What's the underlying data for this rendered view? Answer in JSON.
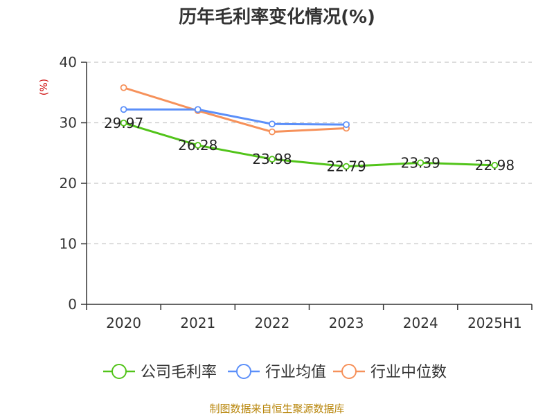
{
  "chart_data": {
    "type": "line",
    "title": "历年毛利率变化情况(%)",
    "ylabel": "(%)",
    "xlabel": "",
    "categories": [
      "2020",
      "2021",
      "2022",
      "2023",
      "2024",
      "2025H1"
    ],
    "ylim": [
      0,
      40
    ],
    "yticks": [
      0,
      10,
      20,
      30,
      40
    ],
    "grid": true,
    "legend_position": "bottom",
    "series": [
      {
        "name": "公司毛利率",
        "color": "#52c41a",
        "values": [
          29.97,
          26.28,
          23.98,
          22.79,
          23.39,
          22.98
        ],
        "show_labels": true
      },
      {
        "name": "行业均值",
        "color": "#5b8ff9",
        "values": [
          32.2,
          32.2,
          29.8,
          29.7,
          null,
          null
        ],
        "show_labels": false
      },
      {
        "name": "行业中位数",
        "color": "#f6915a",
        "values": [
          35.8,
          32.0,
          28.5,
          29.1,
          null,
          null
        ],
        "show_labels": false
      }
    ]
  },
  "footer": {
    "source": "制图数据来自恒生聚源数据库"
  }
}
